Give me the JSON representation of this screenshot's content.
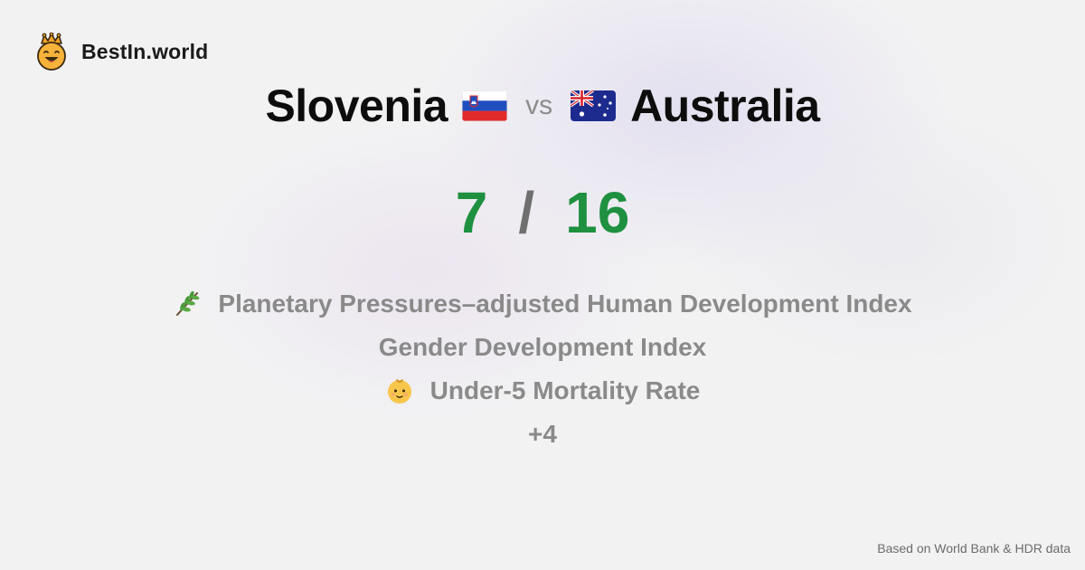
{
  "brand": {
    "name": "BestIn.world",
    "logo_icon": "crown-smiley-icon"
  },
  "comparison": {
    "left_country": "Slovenia",
    "left_flag": "slovenia-flag-icon",
    "vs_label": "vs",
    "right_country": "Australia",
    "right_flag": "australia-flag-icon"
  },
  "score": {
    "left": "7",
    "separator": "/",
    "right": "16",
    "color": "#1e9040"
  },
  "metrics": [
    {
      "icon": "herb-icon",
      "label": "Planetary Pressures–adjusted Human Development Index"
    },
    {
      "icon": "",
      "label": "Gender Development Index"
    },
    {
      "icon": "baby-icon",
      "label": "Under-5 Mortality Rate"
    }
  ],
  "more_label": "+4",
  "footer": {
    "source": "Based on World Bank & HDR data"
  }
}
